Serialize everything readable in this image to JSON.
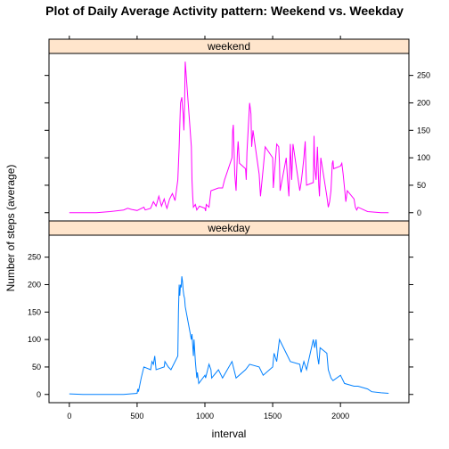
{
  "chart_data": {
    "type": "line",
    "title": "Plot of Daily Average Activity pattern: Weekend vs. Weekday",
    "xlabel": "interval",
    "ylabel": "Number of steps (average)",
    "xlim": [
      -150,
      2505
    ],
    "ylim": [
      -15,
      290
    ],
    "x_ticks": [
      0,
      500,
      1000,
      1500,
      2000
    ],
    "y_ticks": [
      0,
      50,
      100,
      150,
      200,
      250
    ],
    "colors": {
      "weekend": "#ff00ff",
      "weekday": "#0080ff",
      "strip": "#ffe5cc"
    },
    "panels": [
      {
        "name": "weekend",
        "color": "#ff00ff",
        "y_axis_side": "right",
        "x": [
          0,
          200,
          300,
          400,
          430,
          460,
          500,
          550,
          560,
          600,
          620,
          640,
          660,
          680,
          700,
          710,
          720,
          740,
          760,
          780,
          800,
          810,
          820,
          830,
          835,
          840,
          845,
          850,
          855,
          900,
          905,
          910,
          915,
          930,
          940,
          960,
          1000,
          1005,
          1010,
          1030,
          1045,
          1100,
          1130,
          1145,
          1200,
          1205,
          1210,
          1220,
          1230,
          1240,
          1245,
          1255,
          1300,
          1305,
          1310,
          1330,
          1340,
          1345,
          1355,
          1400,
          1410,
          1430,
          1445,
          1500,
          1505,
          1530,
          1545,
          1550,
          1555,
          1600,
          1610,
          1620,
          1630,
          1640,
          1645,
          1650,
          1700,
          1710,
          1720,
          1730,
          1740,
          1745,
          1750,
          1800,
          1805,
          1810,
          1820,
          1830,
          1840,
          1845,
          1850,
          1855,
          1900,
          1910,
          1920,
          1930,
          1940,
          1945,
          1950,
          2000,
          2010,
          2020,
          2030,
          2040,
          2050,
          2100,
          2110,
          2120,
          2130,
          2200,
          2300,
          2355
        ],
        "y": [
          0,
          0,
          2,
          5,
          8,
          6,
          4,
          10,
          5,
          8,
          20,
          12,
          30,
          12,
          25,
          15,
          8,
          25,
          35,
          22,
          60,
          120,
          200,
          210,
          190,
          180,
          150,
          200,
          275,
          120,
          60,
          30,
          10,
          15,
          5,
          12,
          8,
          3,
          15,
          10,
          40,
          45,
          45,
          60,
          100,
          150,
          160,
          70,
          40,
          110,
          130,
          90,
          80,
          60,
          110,
          200,
          180,
          120,
          150,
          70,
          30,
          80,
          120,
          100,
          45,
          125,
          120,
          90,
          40,
          100,
          60,
          30,
          125,
          60,
          90,
          125,
          40,
          55,
          75,
          100,
          130,
          80,
          50,
          55,
          140,
          85,
          60,
          120,
          50,
          30,
          65,
          100,
          30,
          10,
          20,
          40,
          90,
          95,
          80,
          85,
          90,
          70,
          45,
          20,
          40,
          25,
          10,
          5,
          10,
          2,
          0,
          0
        ]
      },
      {
        "name": "weekday",
        "color": "#0080ff",
        "y_axis_side": "left",
        "x": [
          0,
          100,
          200,
          300,
          400,
          450,
          500,
          505,
          510,
          530,
          550,
          600,
          610,
          620,
          630,
          640,
          700,
          705,
          730,
          750,
          800,
          805,
          810,
          815,
          820,
          825,
          830,
          835,
          840,
          845,
          850,
          855,
          900,
          905,
          910,
          915,
          920,
          930,
          940,
          945,
          955,
          1000,
          1005,
          1030,
          1045,
          1050,
          1100,
          1130,
          1200,
          1230,
          1300,
          1330,
          1400,
          1430,
          1500,
          1510,
          1530,
          1545,
          1550,
          1600,
          1630,
          1700,
          1710,
          1730,
          1750,
          1800,
          1810,
          1820,
          1830,
          1840,
          1850,
          1900,
          1910,
          1930,
          1945,
          2000,
          2030,
          2100,
          2130,
          2200,
          2230,
          2300,
          2355
        ],
        "y": [
          1,
          0,
          0,
          0,
          0,
          1,
          2,
          10,
          5,
          30,
          50,
          45,
          60,
          55,
          70,
          45,
          50,
          60,
          50,
          45,
          70,
          150,
          200,
          180,
          200,
          195,
          215,
          205,
          190,
          180,
          175,
          160,
          100,
          110,
          90,
          70,
          100,
          60,
          30,
          40,
          20,
          35,
          30,
          55,
          45,
          30,
          45,
          30,
          60,
          30,
          45,
          55,
          50,
          35,
          50,
          75,
          60,
          90,
          100,
          75,
          60,
          55,
          40,
          60,
          45,
          100,
          85,
          100,
          70,
          55,
          85,
          75,
          45,
          30,
          25,
          35,
          20,
          15,
          15,
          10,
          5,
          3,
          2
        ]
      }
    ]
  }
}
